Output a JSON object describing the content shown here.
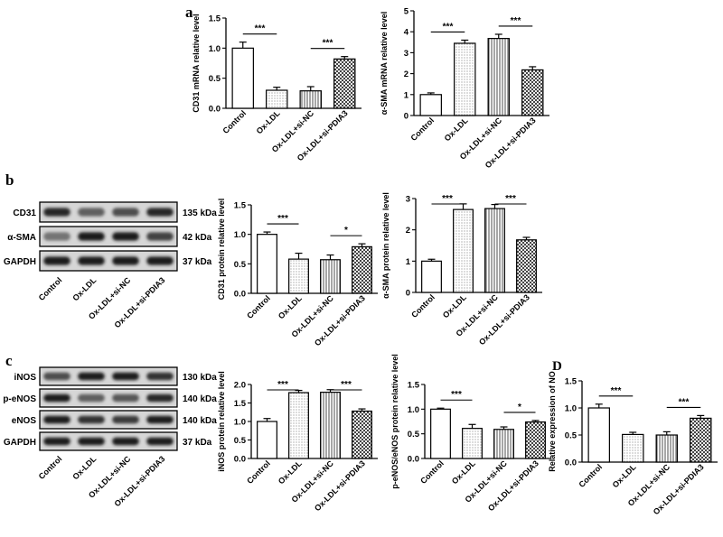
{
  "panel_letters": [
    "a",
    "b",
    "c",
    "D"
  ],
  "groups": [
    "Control",
    "Ox-LDL",
    "Ox-LDL+si-NC",
    "Ox-LDL+si-PDIA3"
  ],
  "blots": [
    {
      "panel": "b",
      "rows": [
        {
          "name": "CD31",
          "kda": "135 kDa",
          "bands": [
            0.85,
            0.55,
            0.65,
            0.85
          ]
        },
        {
          "name": "α-SMA",
          "kda": "42 kDa",
          "bands": [
            0.45,
            0.9,
            0.9,
            0.7
          ]
        },
        {
          "name": "GAPDH",
          "kda": "37 kDa",
          "bands": [
            0.9,
            0.9,
            0.9,
            0.9
          ]
        }
      ]
    },
    {
      "panel": "c",
      "rows": [
        {
          "name": "iNOS",
          "kda": "130 kDa",
          "bands": [
            0.65,
            0.9,
            0.9,
            0.8
          ]
        },
        {
          "name": "p-eNOS",
          "kda": "140 kDa",
          "bands": [
            0.9,
            0.55,
            0.6,
            0.85
          ]
        },
        {
          "name": "eNOS",
          "kda": "140 kDa",
          "bands": [
            0.9,
            0.8,
            0.75,
            0.9
          ]
        },
        {
          "name": "GAPDH",
          "kda": "37 kDa",
          "bands": [
            0.9,
            0.9,
            0.9,
            0.9
          ]
        }
      ]
    }
  ],
  "chart_data": [
    {
      "id": "a1",
      "type": "bar",
      "title": "",
      "ylabel": "CD31 mRNA relative level",
      "categories": [
        "Control",
        "Ox-LDL",
        "Ox-LDL+si-NC",
        "Ox-LDL+si-PDIA3"
      ],
      "values": [
        1.0,
        0.3,
        0.29,
        0.82
      ],
      "errors": [
        0.1,
        0.05,
        0.07,
        0.04
      ],
      "ylim": [
        0,
        1.5
      ],
      "yticks": [
        "0.0",
        "0.5",
        "1.0",
        "1.5"
      ],
      "sig": [
        {
          "from": 0,
          "to": 1,
          "label": "***"
        },
        {
          "from": 2,
          "to": 3,
          "label": "***"
        }
      ]
    },
    {
      "id": "a2",
      "type": "bar",
      "title": "",
      "ylabel": "α-SMA mRNA relative level",
      "categories": [
        "Control",
        "Ox-LDL",
        "Ox-LDL+si-NC",
        "Ox-LDL+si-PDIA3"
      ],
      "values": [
        1.0,
        3.45,
        3.68,
        2.18
      ],
      "errors": [
        0.08,
        0.15,
        0.2,
        0.15
      ],
      "ylim": [
        0,
        5
      ],
      "yticks": [
        "0",
        "1",
        "2",
        "3",
        "4",
        "5"
      ],
      "sig": [
        {
          "from": 0,
          "to": 1,
          "label": "***"
        },
        {
          "from": 2,
          "to": 3,
          "label": "***"
        }
      ]
    },
    {
      "id": "b1",
      "type": "bar",
      "title": "",
      "ylabel": "CD31 protein relative level",
      "categories": [
        "Control",
        "Ox-LDL",
        "Ox-LDL+si-NC",
        "Ox-LDL+si-PDIA3"
      ],
      "values": [
        1.0,
        0.58,
        0.57,
        0.79
      ],
      "errors": [
        0.04,
        0.1,
        0.08,
        0.05
      ],
      "ylim": [
        0,
        1.5
      ],
      "yticks": [
        "0.0",
        "0.5",
        "1.0",
        "1.5"
      ],
      "sig": [
        {
          "from": 0,
          "to": 1,
          "label": "***"
        },
        {
          "from": 2,
          "to": 3,
          "label": "*"
        }
      ]
    },
    {
      "id": "b2",
      "type": "bar",
      "title": "",
      "ylabel": "α-SMA protein relative level",
      "categories": [
        "Control",
        "Ox-LDL",
        "Ox-LDL+si-NC",
        "Ox-LDL+si-PDIA3"
      ],
      "values": [
        1.0,
        2.65,
        2.68,
        1.68
      ],
      "errors": [
        0.06,
        0.18,
        0.13,
        0.08
      ],
      "ylim": [
        0,
        3
      ],
      "yticks": [
        "0",
        "1",
        "2",
        "3"
      ],
      "sig": [
        {
          "from": 0,
          "to": 1,
          "label": "***"
        },
        {
          "from": 2,
          "to": 3,
          "label": "***"
        }
      ]
    },
    {
      "id": "c1",
      "type": "bar",
      "title": "",
      "ylabel": "iNOS protein relative level",
      "categories": [
        "Control",
        "Ox-LDL",
        "Ox-LDL+si-NC",
        "Ox-LDL+si-PDIA3"
      ],
      "values": [
        1.0,
        1.78,
        1.79,
        1.28
      ],
      "errors": [
        0.08,
        0.06,
        0.07,
        0.06
      ],
      "ylim": [
        0,
        2.0
      ],
      "yticks": [
        "0.0",
        "0.5",
        "1.0",
        "1.5",
        "2.0"
      ],
      "sig": [
        {
          "from": 0,
          "to": 1,
          "label": "***"
        },
        {
          "from": 2,
          "to": 3,
          "label": "***"
        }
      ]
    },
    {
      "id": "c2",
      "type": "bar",
      "title": "",
      "ylabel": "p-eNOS/eNOS protein relative level",
      "categories": [
        "Control",
        "Ox-LDL",
        "Ox-LDL+si-NC",
        "Ox-LDL+si-PDIA3"
      ],
      "values": [
        1.0,
        0.61,
        0.59,
        0.74
      ],
      "errors": [
        0.02,
        0.08,
        0.05,
        0.03
      ],
      "ylim": [
        0,
        1.5
      ],
      "yticks": [
        "0.0",
        "0.5",
        "1.0",
        "1.5"
      ],
      "sig": [
        {
          "from": 0,
          "to": 1,
          "label": "***"
        },
        {
          "from": 2,
          "to": 3,
          "label": "*"
        }
      ]
    },
    {
      "id": "d1",
      "type": "bar",
      "title": "",
      "ylabel": "Relative expression of NO",
      "categories": [
        "Control",
        "Ox-LDL",
        "Ox-LDL+si-NC",
        "Ox-LDL+si-PDIA3"
      ],
      "values": [
        1.0,
        0.51,
        0.5,
        0.81
      ],
      "errors": [
        0.07,
        0.04,
        0.06,
        0.05
      ],
      "ylim": [
        0,
        1.5
      ],
      "yticks": [
        "0.0",
        "0.5",
        "1.0",
        "1.5"
      ],
      "sig": [
        {
          "from": 0,
          "to": 1,
          "label": "***"
        },
        {
          "from": 2,
          "to": 3,
          "label": "***"
        }
      ]
    }
  ]
}
